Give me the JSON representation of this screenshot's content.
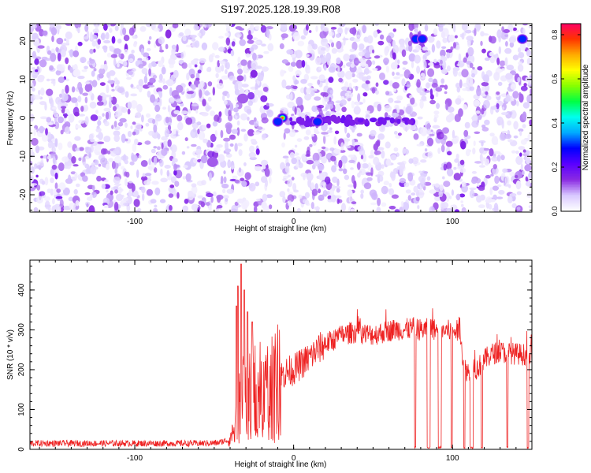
{
  "title": "S197.2025.128.19.39.R08",
  "colors": {
    "snr_line": "#ee2222",
    "axis": "#000000",
    "background": "#ffffff"
  },
  "chart_data": [
    {
      "type": "heatmap",
      "xlabel": "Height of straight line (km)",
      "ylabel": "Frequency (Hz)",
      "xlim": [
        -166,
        150
      ],
      "ylim": [
        -24.5,
        24.5
      ],
      "x_ticks": [
        -100,
        0,
        100
      ],
      "y_ticks": [
        -20,
        -10,
        0,
        10,
        20
      ],
      "gap_x_range": [
        -14,
        -8
      ],
      "hotspots": [
        {
          "x": -7,
          "y": 0,
          "amplitude": 0.75
        },
        {
          "x": -10,
          "y": -1,
          "amplitude": 0.4
        },
        {
          "x": 15,
          "y": -1,
          "amplitude": 0.35
        },
        {
          "x": 77,
          "y": 20.5,
          "amplitude": 0.3
        },
        {
          "x": 81,
          "y": 20.5,
          "amplitude": 0.3
        },
        {
          "x": 144,
          "y": 20.5,
          "amplitude": 0.3
        },
        {
          "x": -32,
          "y": 5,
          "amplitude": 0.15
        },
        {
          "x": -51,
          "y": -11.5,
          "amplitude": 0.15
        }
      ],
      "colorbar": {
        "label": "Normalized spectral amplitude",
        "range": [
          0.0,
          0.85
        ],
        "ticks": [
          0.0,
          0.2,
          0.4,
          0.6,
          0.8
        ],
        "tick_labels": [
          "0.0",
          "0.2",
          "0.4",
          "0.6",
          "0.8"
        ],
        "colormap": [
          "#ffffff",
          "#d8c8ff",
          "#8a2be2",
          "#5a00ff",
          "#0000ff",
          "#00aaff",
          "#00ffee",
          "#00ff44",
          "#88ff00",
          "#ffff00",
          "#ffaa00",
          "#ff3300",
          "#ff0066"
        ]
      }
    },
    {
      "type": "line",
      "xlabel": "Height of straight line (km)",
      "ylabel": "SNR (10 * v/v)",
      "xlim": [
        -166,
        150
      ],
      "ylim": [
        0,
        475
      ],
      "x_ticks": [
        -100,
        0,
        100
      ],
      "y_ticks": [
        0,
        100,
        200,
        300,
        400
      ],
      "envelope": [
        {
          "x": -166,
          "y": 15
        },
        {
          "x": -140,
          "y": 15
        },
        {
          "x": -110,
          "y": 15
        },
        {
          "x": -80,
          "y": 15
        },
        {
          "x": -60,
          "y": 15
        },
        {
          "x": -48,
          "y": 16
        },
        {
          "x": -40,
          "y": 25
        },
        {
          "x": -37,
          "y": 55
        },
        {
          "x": -35,
          "y": 90
        },
        {
          "x": -33,
          "y": 140
        },
        {
          "x": -31,
          "y": 160
        },
        {
          "x": -28,
          "y": 140
        },
        {
          "x": -25,
          "y": 150
        },
        {
          "x": -20,
          "y": 150
        },
        {
          "x": -15,
          "y": 160
        },
        {
          "x": -12,
          "y": 175
        },
        {
          "x": -8,
          "y": 185
        },
        {
          "x": -4,
          "y": 195
        },
        {
          "x": 0,
          "y": 200
        },
        {
          "x": 5,
          "y": 215
        },
        {
          "x": 10,
          "y": 230
        },
        {
          "x": 15,
          "y": 250
        },
        {
          "x": 20,
          "y": 265
        },
        {
          "x": 25,
          "y": 275
        },
        {
          "x": 30,
          "y": 285
        },
        {
          "x": 35,
          "y": 292
        },
        {
          "x": 40,
          "y": 295
        },
        {
          "x": 45,
          "y": 290
        },
        {
          "x": 50,
          "y": 288
        },
        {
          "x": 55,
          "y": 292
        },
        {
          "x": 60,
          "y": 298
        },
        {
          "x": 65,
          "y": 302
        },
        {
          "x": 70,
          "y": 300
        },
        {
          "x": 75,
          "y": 305
        },
        {
          "x": 80,
          "y": 300
        },
        {
          "x": 85,
          "y": 302
        },
        {
          "x": 90,
          "y": 300
        },
        {
          "x": 95,
          "y": 298
        },
        {
          "x": 100,
          "y": 298
        },
        {
          "x": 105,
          "y": 296
        },
        {
          "x": 107,
          "y": 205
        },
        {
          "x": 110,
          "y": 195
        },
        {
          "x": 115,
          "y": 200
        },
        {
          "x": 120,
          "y": 225
        },
        {
          "x": 125,
          "y": 240
        },
        {
          "x": 130,
          "y": 245
        },
        {
          "x": 135,
          "y": 242
        },
        {
          "x": 140,
          "y": 240
        },
        {
          "x": 145,
          "y": 238
        },
        {
          "x": 150,
          "y": 236
        }
      ],
      "peaks": [
        {
          "x": -33,
          "y": 465
        },
        {
          "x": -35,
          "y": 410
        },
        {
          "x": -31,
          "y": 400
        },
        {
          "x": -36,
          "y": 360
        },
        {
          "x": -29,
          "y": 345
        },
        {
          "x": -26,
          "y": 320
        }
      ],
      "dropouts": [
        {
          "from": 76,
          "to": 77
        },
        {
          "from": 84,
          "to": 86
        },
        {
          "from": 91,
          "to": 93
        },
        {
          "from": 99,
          "to": 100
        },
        {
          "from": 107,
          "to": 108
        },
        {
          "from": 111,
          "to": 113
        },
        {
          "from": 118,
          "to": 119
        },
        {
          "from": 134,
          "to": 135
        },
        {
          "from": 147,
          "to": 148
        }
      ]
    }
  ]
}
